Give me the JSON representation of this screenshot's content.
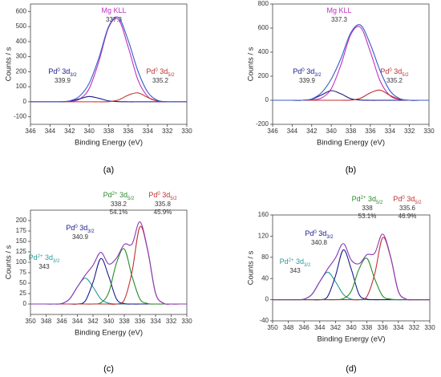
{
  "chart_data": [
    {
      "type": "line",
      "caption": "(a)",
      "x_label": "Binding Energy (eV)",
      "y_label": "Counts / s",
      "x": [
        346,
        345,
        344,
        343,
        342,
        341,
        340,
        339,
        338,
        337,
        336,
        335,
        334,
        333,
        332,
        331,
        330
      ],
      "xlim": [
        346,
        330
      ],
      "xticks": [
        346,
        344,
        342,
        340,
        338,
        336,
        334,
        332,
        330
      ],
      "ylim": [
        -150,
        650
      ],
      "yticks": [
        -100,
        0,
        100,
        200,
        300,
        400,
        500,
        600
      ],
      "series": [
        {
          "color": "#c030c0",
          "label": {
            "name": "Mg KLL"
          },
          "position": 337.3,
          "values": [
            0,
            0,
            0,
            0,
            2,
            17,
            87,
            268,
            494,
            547,
            364,
            145,
            35,
            5,
            0,
            0,
            0
          ]
        },
        {
          "color": "#1a1a8c",
          "label": {
            "name": "Pd",
            "sup": "0",
            "text": " 3d",
            "sub": "3/2"
          },
          "position": 339.9,
          "values": [
            0,
            0,
            0,
            0,
            4,
            19,
            35,
            23,
            6,
            1,
            0,
            0,
            0,
            0,
            0,
            0,
            0
          ]
        },
        {
          "color": "#c03030",
          "label": {
            "name": "Pd",
            "sup": "0",
            "text": " 3d",
            "sub": "5/2"
          },
          "position": 335.2,
          "values": [
            0,
            0,
            0,
            0,
            0,
            0,
            0,
            0,
            1,
            12,
            44,
            59,
            29,
            5,
            0,
            0,
            0
          ]
        },
        {
          "color": "#3a5cc8",
          "values": [
            0,
            0,
            0,
            0,
            6,
            36,
            122,
            291,
            501,
            560,
            408,
            204,
            64,
            10,
            0,
            0,
            0
          ]
        }
      ]
    },
    {
      "type": "line",
      "caption": "(b)",
      "x_label": "Binding Energy (eV)",
      "y_label": "Counts / s",
      "x": [
        346,
        345,
        344,
        343,
        342,
        341,
        340,
        339,
        338,
        337,
        336,
        335,
        334,
        333,
        332,
        331,
        330
      ],
      "xlim": [
        346,
        330
      ],
      "xticks": [
        346,
        344,
        342,
        340,
        338,
        336,
        334,
        332,
        330
      ],
      "ylim": [
        -200,
        800
      ],
      "yticks": [
        -200,
        0,
        200,
        400,
        600,
        800
      ],
      "series": [
        {
          "color": "#c030c0",
          "label": {
            "name": "Mg KLL"
          },
          "position": 337.3,
          "values": [
            0,
            0,
            0,
            0,
            2,
            19,
            96,
            297,
            547,
            606,
            403,
            161,
            39,
            6,
            0,
            0,
            0
          ]
        },
        {
          "color": "#1a1a8c",
          "label": {
            "name": "Pd",
            "sup": "0",
            "text": " 3d",
            "sub": "3/2"
          },
          "position": 339.9,
          "values": [
            0,
            0,
            0,
            0,
            9,
            44,
            80,
            53,
            13,
            2,
            0,
            0,
            0,
            0,
            0,
            0,
            0
          ]
        },
        {
          "color": "#c03030",
          "label": {
            "name": "Pd",
            "sup": "0",
            "text": " 3d",
            "sub": "5/2"
          },
          "position": 335.2,
          "values": [
            0,
            0,
            0,
            0,
            0,
            0,
            0,
            0,
            1,
            17,
            62,
            84,
            41,
            8,
            0,
            0,
            0
          ]
        },
        {
          "color": "#3a5cc8",
          "values": [
            0,
            0,
            0,
            0,
            11,
            63,
            176,
            350,
            561,
            625,
            465,
            245,
            80,
            14,
            0,
            0,
            0
          ]
        }
      ]
    },
    {
      "type": "line",
      "caption": "(c)",
      "x_label": "Binding Energy (eV)",
      "y_label": "Counts / s",
      "x": [
        350,
        349,
        348,
        347,
        346,
        345,
        344,
        343,
        342,
        341,
        340,
        339,
        338,
        337,
        336,
        335,
        334,
        333,
        332,
        331,
        330
      ],
      "xlim": [
        350,
        330
      ],
      "xticks": [
        350,
        348,
        346,
        344,
        342,
        340,
        338,
        336,
        334,
        332,
        330
      ],
      "ylim": [
        -25,
        225
      ],
      "yticks": [
        0,
        25,
        50,
        75,
        100,
        125,
        150,
        175,
        200
      ],
      "series": [
        {
          "color": "#2a9a9a",
          "label": {
            "name": "Pd",
            "sup": "2+",
            "text": " 3d",
            "sub": "3/2"
          },
          "position": 343.0,
          "values": [
            0,
            0,
            0,
            0,
            1,
            12,
            41,
            62,
            41,
            12,
            2,
            0,
            0,
            0,
            0,
            0,
            0,
            0,
            0,
            0,
            0
          ]
        },
        {
          "color": "#1a1a8c",
          "label": {
            "name": "Pd",
            "sup": "0",
            "text": " 3d",
            "sub": "3/2"
          },
          "position": 340.9,
          "values": [
            0,
            0,
            0,
            0,
            0,
            0,
            0,
            7,
            52,
            109,
            67,
            12,
            1,
            0,
            0,
            0,
            0,
            0,
            0,
            0,
            0
          ]
        },
        {
          "color": "#2a8a2a",
          "label": {
            "name": "Pd",
            "sup": "2+",
            "text": " 3d",
            "sub": "5/2"
          },
          "position": 338.2,
          "share": {
            "value": 54.1,
            "label": "54.1%"
          },
          "values": [
            0,
            0,
            0,
            0,
            0,
            0,
            0,
            0,
            0,
            3,
            27,
            98,
            132,
            66,
            12,
            1,
            0,
            0,
            0,
            0,
            0
          ]
        },
        {
          "color": "#c03030",
          "label": {
            "name": "Pd",
            "sup": "0",
            "text": " 3d",
            "sub": "5/2"
          },
          "position": 335.8,
          "share": {
            "value": 45.9,
            "label": "45.9%"
          },
          "values": [
            0,
            0,
            0,
            0,
            0,
            0,
            0,
            0,
            0,
            0,
            0,
            0,
            10,
            78,
            185,
            128,
            26,
            2,
            0,
            0,
            0
          ]
        },
        {
          "color": "#8a3ab8",
          "values": [
            0,
            0,
            0,
            0,
            1,
            12,
            41,
            69,
            93,
            124,
            96,
            110,
            143,
            144,
            197,
            129,
            26,
            2,
            0,
            0,
            0
          ]
        }
      ]
    },
    {
      "type": "line",
      "caption": "(d)",
      "x_label": "Binding Energy (eV)",
      "y_label": "Counts / s",
      "x": [
        350,
        349,
        348,
        347,
        346,
        345,
        344,
        343,
        342,
        341,
        340,
        339,
        338,
        337,
        336,
        335,
        334,
        333,
        332,
        331,
        330
      ],
      "xlim": [
        350,
        330
      ],
      "xticks": [
        350,
        348,
        346,
        344,
        342,
        340,
        338,
        336,
        334,
        332,
        330
      ],
      "ylim": [
        -40,
        160
      ],
      "yticks": [
        -40,
        0,
        40,
        80,
        120,
        160
      ],
      "series": [
        {
          "color": "#2a9a9a",
          "label": {
            "name": "Pd",
            "sup": "2+",
            "text": " 3d",
            "sub": "3/2"
          },
          "position": 343.0,
          "values": [
            0,
            0,
            0,
            0,
            1,
            10,
            34,
            52,
            34,
            10,
            1,
            0,
            0,
            0,
            0,
            0,
            0,
            0,
            0,
            0,
            0
          ]
        },
        {
          "color": "#1a1a8c",
          "label": {
            "name": "Pd",
            "sup": "0",
            "text": " 3d",
            "sub": "3/2"
          },
          "position": 340.8,
          "values": [
            0,
            0,
            0,
            0,
            0,
            0,
            0,
            6,
            45,
            94,
            58,
            10,
            1,
            0,
            0,
            0,
            0,
            0,
            0,
            0,
            0
          ]
        },
        {
          "color": "#2a8a2a",
          "label": {
            "name": "Pd",
            "sup": "2+",
            "text": " 3d",
            "sub": "5/2"
          },
          "position": 338.0,
          "share": {
            "value": 53.1,
            "label": "53.1%"
          },
          "values": [
            0,
            0,
            0,
            0,
            0,
            0,
            0,
            0,
            0,
            2,
            16,
            58,
            78,
            39,
            7,
            1,
            0,
            0,
            0,
            0,
            0
          ]
        },
        {
          "color": "#c03030",
          "label": {
            "name": "Pd",
            "sup": "0",
            "text": " 3d",
            "sub": "5/2"
          },
          "position": 335.6,
          "share": {
            "value": 46.9,
            "label": "46.9%"
          },
          "values": [
            0,
            0,
            0,
            0,
            0,
            0,
            0,
            0,
            0,
            0,
            0,
            0,
            6,
            49,
            117,
            81,
            16,
            1,
            0,
            0,
            0
          ]
        },
        {
          "color": "#8a3ab8",
          "values": [
            0,
            0,
            0,
            0,
            1,
            10,
            34,
            58,
            79,
            106,
            75,
            68,
            85,
            88,
            124,
            82,
            16,
            1,
            0,
            0,
            0
          ]
        }
      ]
    }
  ]
}
